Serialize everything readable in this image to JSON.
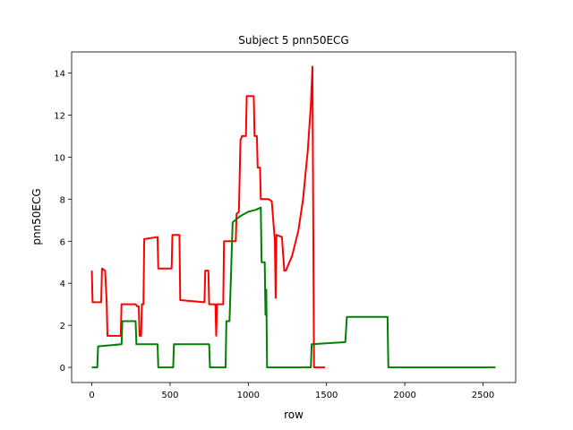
{
  "chart_data": {
    "type": "line",
    "title": "Subject 5 pnn50ECG",
    "x_label": "row",
    "y_label": "pnn50ECG",
    "xlim": [
      -129,
      2709
    ],
    "ylim": [
      -0.72,
      15.0
    ],
    "xticks": [
      0,
      500,
      1000,
      1500,
      2000,
      2500
    ],
    "yticks": [
      0,
      2,
      4,
      6,
      8,
      10,
      12,
      14
    ],
    "grid": false,
    "series": [
      {
        "color": "#ff0000",
        "x": [
          0,
          5,
          60,
          65,
          85,
          95,
          100,
          185,
          190,
          280,
          290,
          300,
          305,
          315,
          320,
          330,
          335,
          420,
          425,
          510,
          515,
          560,
          565,
          720,
          725,
          745,
          750,
          790,
          795,
          800,
          840,
          845,
          920,
          925,
          940,
          950,
          960,
          985,
          990,
          1035,
          1040,
          1055,
          1060,
          1075,
          1080,
          1130,
          1150,
          1170,
          1175,
          1180,
          1215,
          1230,
          1240,
          1280,
          1320,
          1350,
          1380,
          1400,
          1410,
          1420,
          1490
        ],
        "values": [
          4.6,
          3.1,
          3.1,
          4.7,
          4.6,
          3.1,
          1.5,
          1.5,
          3.0,
          3.0,
          2.9,
          2.9,
          1.5,
          1.5,
          3.0,
          3.0,
          6.1,
          6.2,
          4.7,
          4.7,
          6.3,
          6.3,
          3.2,
          3.1,
          4.6,
          4.6,
          3.0,
          3.0,
          1.5,
          3.0,
          3.0,
          6.0,
          6.0,
          7.3,
          7.4,
          10.8,
          11.0,
          11.0,
          12.9,
          12.9,
          11.0,
          11.0,
          9.5,
          9.5,
          8.0,
          8.0,
          7.9,
          6.0,
          3.3,
          6.3,
          6.2,
          4.6,
          4.6,
          5.3,
          6.5,
          8.0,
          10.3,
          12.5,
          14.3,
          0,
          0
        ]
      },
      {
        "color": "#008000",
        "x": [
          0,
          35,
          40,
          190,
          195,
          280,
          285,
          420,
          425,
          520,
          525,
          750,
          755,
          855,
          860,
          880,
          890,
          900,
          950,
          1000,
          1050,
          1080,
          1085,
          1105,
          1110,
          1115,
          1120,
          1400,
          1405,
          1620,
          1630,
          1890,
          1895,
          2580
        ],
        "values": [
          0,
          0,
          1.0,
          1.1,
          2.2,
          2.2,
          1.1,
          1.1,
          0,
          0,
          1.1,
          1.1,
          0,
          0,
          2.2,
          2.2,
          4.5,
          6.9,
          7.2,
          7.4,
          7.5,
          7.6,
          5.0,
          5.0,
          2.5,
          3.7,
          0,
          0,
          1.1,
          1.2,
          2.4,
          2.4,
          0,
          0
        ]
      }
    ]
  }
}
